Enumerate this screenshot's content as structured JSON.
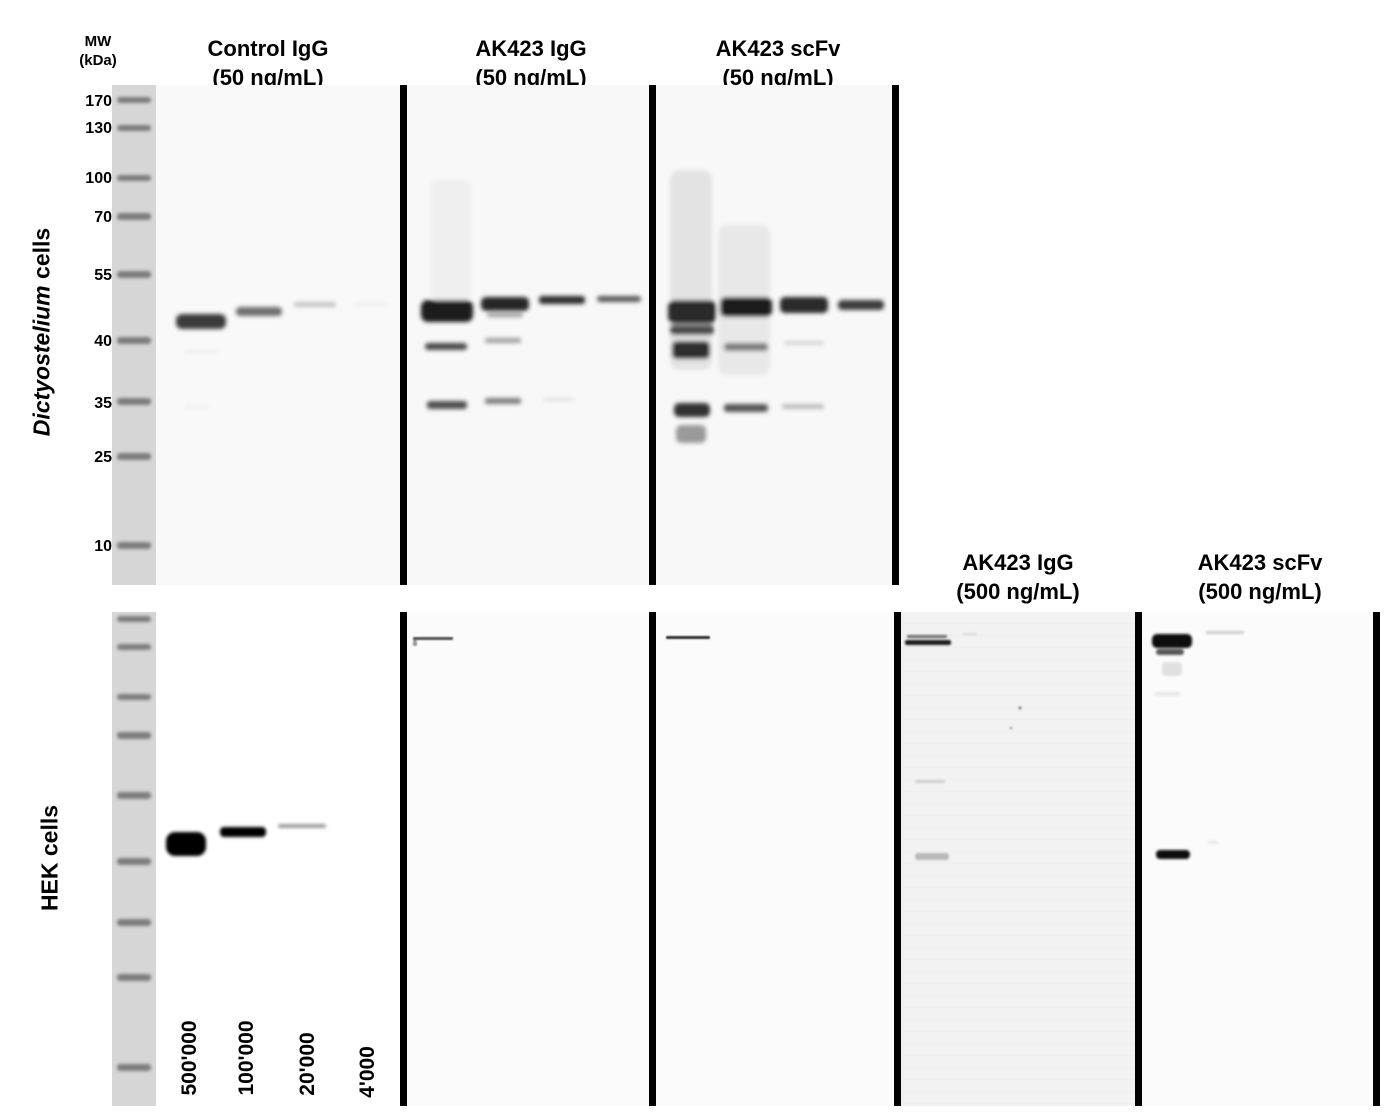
{
  "mw_header": {
    "line1": "MW",
    "line2": "(kDa)"
  },
  "mw_markers": [
    "170",
    "130",
    "100",
    "70",
    "55",
    "40",
    "35",
    "25",
    "10"
  ],
  "row_labels": {
    "top_italic": "Dictyostelium",
    "top_rest": " cells",
    "bottom": "HEK cells"
  },
  "column_headers": [
    {
      "line1": "Control IgG",
      "line2": "(50 ng/mL)"
    },
    {
      "line1": "AK423 IgG",
      "line2": "(50 ng/mL)"
    },
    {
      "line1": "AK423 scFv",
      "line2": "(50 ng/mL)"
    },
    {
      "line1": "AK423 IgG",
      "line2": "(500 ng/mL)"
    },
    {
      "line1": "AK423 scFv",
      "line2": "(500 ng/mL)"
    }
  ],
  "cell_counts": [
    "500'000",
    "100'000",
    "20'000",
    "4'000"
  ]
}
